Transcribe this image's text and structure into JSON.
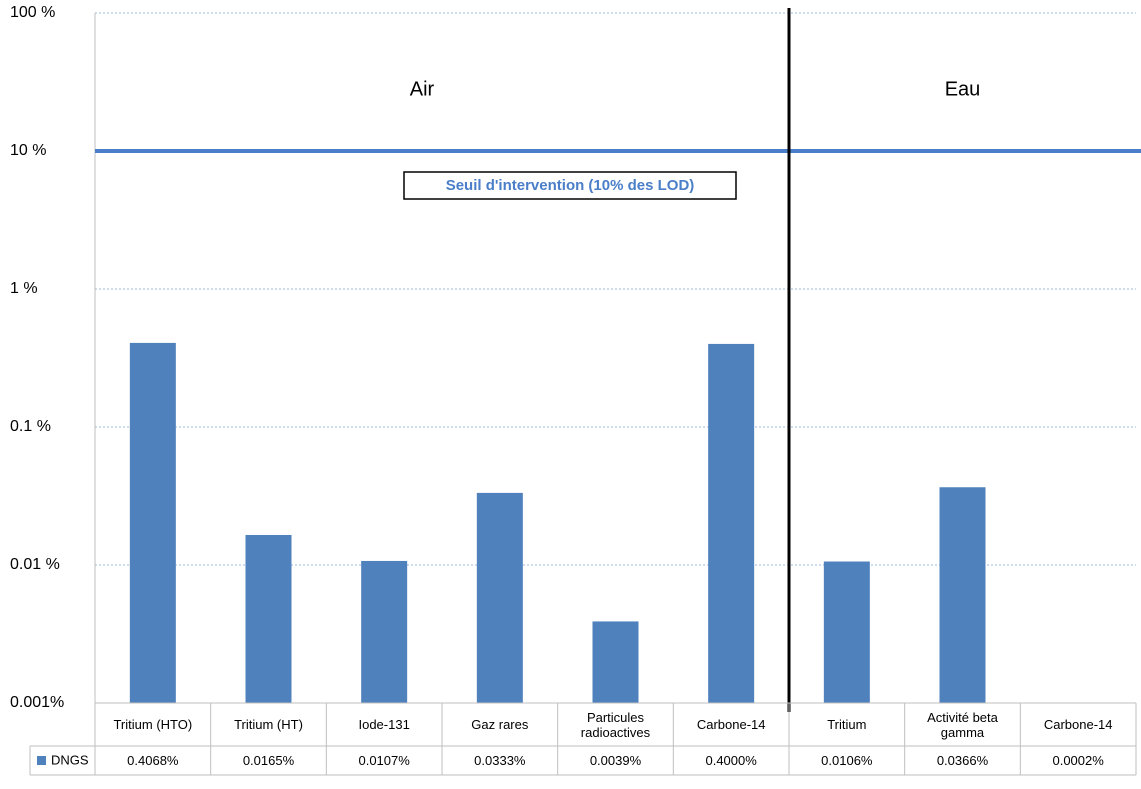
{
  "chart_data": {
    "type": "bar",
    "log_scale": true,
    "grid": true,
    "series": [
      {
        "name": "DNGS",
        "color": "#4f81bd",
        "values": [
          0.4068,
          0.0165,
          0.0107,
          0.0333,
          0.0039,
          0.4,
          0.0106,
          0.0366,
          0.0002
        ],
        "value_labels": [
          "0.4068%",
          "0.0165%",
          "0.0107%",
          "0.0333%",
          "0.0039%",
          "0.4000%",
          "0.0106%",
          "0.0366%",
          "0.0002%"
        ]
      }
    ],
    "categories": [
      "Tritium (HTO)",
      "Tritium (HT)",
      "Iode-131",
      "Gaz rares",
      "Particules radioactives",
      "Carbone-14",
      "Tritium",
      "Activité beta gamma",
      "Carbone-14"
    ],
    "ylim": [
      0.001,
      100
    ],
    "yticks": [
      {
        "value": 100,
        "label": "100 %"
      },
      {
        "value": 10,
        "label": "10 %"
      },
      {
        "value": 1,
        "label": "1 %"
      },
      {
        "value": 0.1,
        "label": "0.1 %"
      },
      {
        "value": 0.01,
        "label": "0.01 %"
      },
      {
        "value": 0.001,
        "label": "0.001%"
      }
    ],
    "groups": [
      {
        "name": "Air",
        "count": 6
      },
      {
        "name": "Eau",
        "count": 3
      }
    ],
    "threshold": {
      "label": "Seuil d'intervention (10% des LOD)",
      "value": 10,
      "color": "#4a7ec8"
    }
  }
}
